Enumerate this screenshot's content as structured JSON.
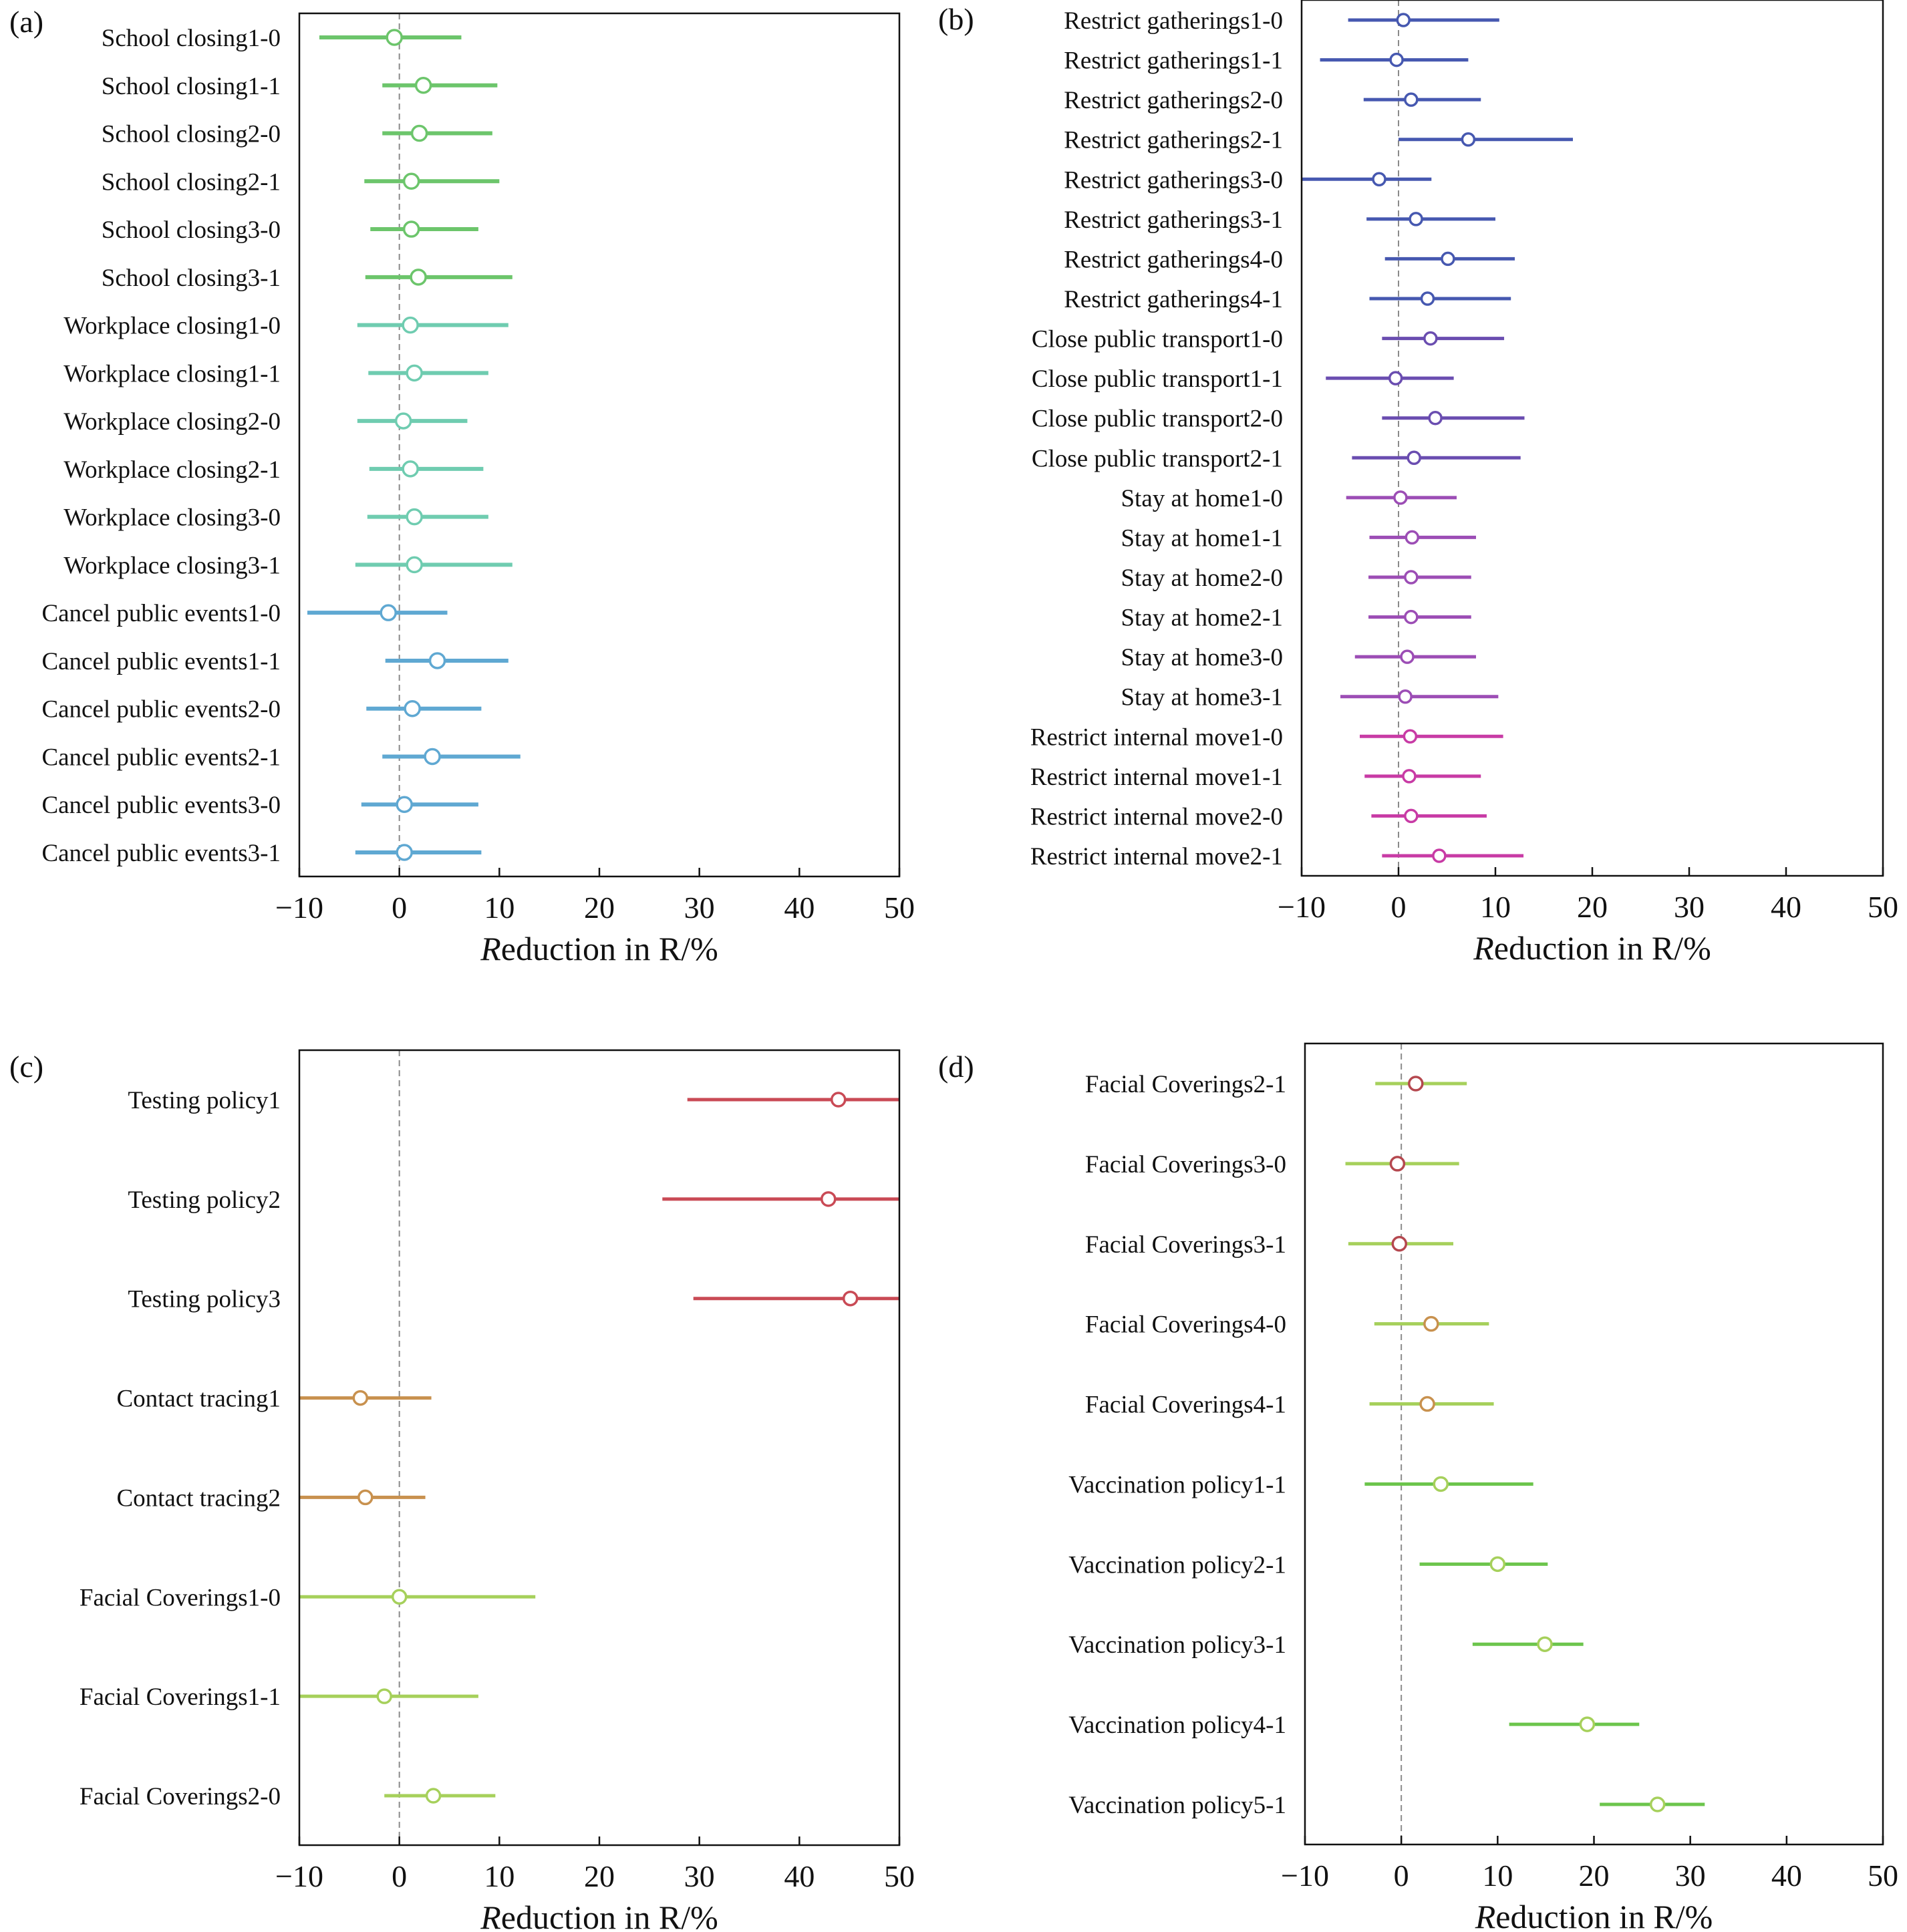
{
  "chart_data": [
    {
      "panel": "(a)",
      "type": "forest",
      "xlabel": "Reduction in R/%",
      "xlim": [
        -10,
        50
      ],
      "xticks": [
        "−10",
        "0",
        "10",
        "20",
        "30",
        "40",
        "50"
      ],
      "rows": [
        {
          "label": "School closing1-0",
          "estimate": -0.5,
          "low": -8,
          "high": 6.2,
          "color": "#6cc56b"
        },
        {
          "label": "School closing1-1",
          "estimate": 2.4,
          "low": -1.7,
          "high": 9.8,
          "color": "#6cc56b"
        },
        {
          "label": "School closing2-0",
          "estimate": 2,
          "low": -1.7,
          "high": 9.3,
          "color": "#6cc56b"
        },
        {
          "label": "School closing2-1",
          "estimate": 1.2,
          "low": -3.5,
          "high": 10,
          "color": "#6cc56b"
        },
        {
          "label": "School closing3-0",
          "estimate": 1.2,
          "low": -2.9,
          "high": 7.9,
          "color": "#6cc56b"
        },
        {
          "label": "School closing3-1",
          "estimate": 1.9,
          "low": -3.4,
          "high": 11.3,
          "color": "#6cc56b"
        },
        {
          "label": "Workplace closing1-0",
          "estimate": 1.1,
          "low": -4.2,
          "high": 10.9,
          "color": "#6fccb0"
        },
        {
          "label": "Workplace closing1-1",
          "estimate": 1.5,
          "low": -3.1,
          "high": 8.9,
          "color": "#6fccb0"
        },
        {
          "label": "Workplace closing2-0",
          "estimate": 0.4,
          "low": -4.2,
          "high": 6.8,
          "color": "#6fccb0"
        },
        {
          "label": "Workplace closing2-1",
          "estimate": 1.1,
          "low": -3,
          "high": 8.4,
          "color": "#6fccb0"
        },
        {
          "label": "Workplace closing3-0",
          "estimate": 1.5,
          "low": -3.2,
          "high": 8.9,
          "color": "#6fccb0"
        },
        {
          "label": "Workplace closing3-1",
          "estimate": 1.5,
          "low": -4.4,
          "high": 11.3,
          "color": "#6fccb0"
        },
        {
          "label": "Cancel public events1-0",
          "estimate": -1.1,
          "low": -9.2,
          "high": 4.8,
          "color": "#5fa8d2"
        },
        {
          "label": "Cancel public events1-1",
          "estimate": 3.8,
          "low": -1.4,
          "high": 10.9,
          "color": "#5fa8d2"
        },
        {
          "label": "Cancel public events2-0",
          "estimate": 1.3,
          "low": -3.3,
          "high": 8.2,
          "color": "#5fa8d2"
        },
        {
          "label": "Cancel public events2-1",
          "estimate": 3.3,
          "low": -1.7,
          "high": 12.1,
          "color": "#5fa8d2"
        },
        {
          "label": "Cancel public events3-0",
          "estimate": 0.5,
          "low": -3.8,
          "high": 7.9,
          "color": "#5fa8d2"
        },
        {
          "label": "Cancel public events3-1",
          "estimate": 0.5,
          "low": -4.4,
          "high": 8.2,
          "color": "#5fa8d2"
        }
      ]
    },
    {
      "panel": "(b)",
      "type": "forest",
      "xlabel": "Reduction in R/%",
      "xlim": [
        -10,
        50
      ],
      "xticks": [
        "−10",
        "0",
        "10",
        "20",
        "30",
        "40",
        "50"
      ],
      "rows": [
        {
          "label": "Restrict gatherings1-0",
          "estimate": 0.5,
          "low": -5.2,
          "high": 10.4,
          "color": "#4658b0"
        },
        {
          "label": "Restrict gatherings1-1",
          "estimate": -0.2,
          "low": -8.1,
          "high": 7.2,
          "color": "#4658b0"
        },
        {
          "label": "Restrict gatherings2-0",
          "estimate": 1.3,
          "low": -3.6,
          "high": 8.5,
          "color": "#4658b0"
        },
        {
          "label": "Restrict gatherings2-1",
          "estimate": 7.2,
          "low": 0,
          "high": 18,
          "color": "#4658b0"
        },
        {
          "label": "Restrict gatherings3-0",
          "estimate": -2,
          "low": -10,
          "high": 3.4,
          "color": "#4658b0"
        },
        {
          "label": "Restrict gatherings3-1",
          "estimate": 1.8,
          "low": -3.3,
          "high": 10,
          "color": "#4658b0"
        },
        {
          "label": "Restrict gatherings4-0",
          "estimate": 5.1,
          "low": -1.4,
          "high": 12,
          "color": "#4658b0"
        },
        {
          "label": "Restrict gatherings4-1",
          "estimate": 3,
          "low": -3,
          "high": 11.6,
          "color": "#4658b0"
        },
        {
          "label": "Close public transport1-0",
          "estimate": 3.3,
          "low": -1.7,
          "high": 10.9,
          "color": "#6a4db0"
        },
        {
          "label": "Close public transport1-1",
          "estimate": -0.3,
          "low": -7.5,
          "high": 5.7,
          "color": "#6a4db0"
        },
        {
          "label": "Close public transport2-0",
          "estimate": 3.8,
          "low": -1.7,
          "high": 13,
          "color": "#6a4db0"
        },
        {
          "label": "Close public transport2-1",
          "estimate": 1.6,
          "low": -4.8,
          "high": 12.6,
          "color": "#6a4db0"
        },
        {
          "label": "Stay at home1-0",
          "estimate": 0.2,
          "low": -5.4,
          "high": 6,
          "color": "#9c4db5"
        },
        {
          "label": "Stay at home1-1",
          "estimate": 1.4,
          "low": -3,
          "high": 8,
          "color": "#9c4db5"
        },
        {
          "label": "Stay at home2-0",
          "estimate": 1.3,
          "low": -3.1,
          "high": 7.5,
          "color": "#9c4db5"
        },
        {
          "label": "Stay at home2-1",
          "estimate": 1.3,
          "low": -3.1,
          "high": 7.5,
          "color": "#9c4db5"
        },
        {
          "label": "Stay at home3-0",
          "estimate": 0.9,
          "low": -4.5,
          "high": 8,
          "color": "#9c4db5"
        },
        {
          "label": "Stay at home3-1",
          "estimate": 0.7,
          "low": -6,
          "high": 10.3,
          "color": "#9c4db5"
        },
        {
          "label": "Restrict internal move1-0",
          "estimate": 1.2,
          "low": -4,
          "high": 10.8,
          "color": "#c83ba5"
        },
        {
          "label": "Restrict internal move1-1",
          "estimate": 1.1,
          "low": -3.5,
          "high": 8.5,
          "color": "#c83ba5"
        },
        {
          "label": "Restrict internal move2-0",
          "estimate": 1.3,
          "low": -2.8,
          "high": 9.1,
          "color": "#c83ba5"
        },
        {
          "label": "Restrict internal move2-1",
          "estimate": 4.2,
          "low": -1.7,
          "high": 12.9,
          "color": "#c83ba5"
        }
      ]
    },
    {
      "panel": "(c)",
      "type": "forest",
      "xlabel": "Reduction in R/%",
      "xlim": [
        -10,
        50
      ],
      "xticks": [
        "−10",
        "0",
        "10",
        "20",
        "30",
        "40",
        "50"
      ],
      "rows": [
        {
          "label": "Testing policy1",
          "estimate": 43.9,
          "low": 28.8,
          "high": 50,
          "color": "#c94a55"
        },
        {
          "label": "Testing policy2",
          "estimate": 42.9,
          "low": 26.3,
          "high": 50,
          "color": "#c94a55"
        },
        {
          "label": "Testing policy3",
          "estimate": 45.1,
          "low": 29.4,
          "high": 50,
          "color": "#c94a55"
        },
        {
          "label": "Contact tracing1",
          "estimate": -3.9,
          "low": -10,
          "high": 3.2,
          "color": "#c8914e"
        },
        {
          "label": "Contact tracing2",
          "estimate": -3.4,
          "low": -10,
          "high": 2.6,
          "color": "#c8914e"
        },
        {
          "label": "Facial Coverings1-0",
          "estimate": 0,
          "low": -10,
          "high": 13.6,
          "color": "#a6d05b"
        },
        {
          "label": "Facial Coverings1-1",
          "estimate": -1.5,
          "low": -10,
          "high": 7.9,
          "color": "#a6d05b"
        },
        {
          "label": "Facial Coverings2-0",
          "estimate": 3.4,
          "low": -1.5,
          "high": 9.6,
          "color": "#a6d05b"
        }
      ]
    },
    {
      "panel": "(d)",
      "type": "forest",
      "xlabel": "Reduction in R/%",
      "xlim": [
        -10,
        50
      ],
      "xticks": [
        "−10",
        "0",
        "10",
        "20",
        "30",
        "40",
        "50"
      ],
      "rows": [
        {
          "label": "Facial Coverings2-1",
          "estimate": 1.5,
          "low": -2.7,
          "high": 6.8,
          "color": "#a6d05b",
          "marker_edge": "#b5484f"
        },
        {
          "label": "Facial Coverings3-0",
          "estimate": -0.4,
          "low": -5.8,
          "high": 6,
          "color": "#a6d05b",
          "marker_edge": "#b5484f"
        },
        {
          "label": "Facial Coverings3-1",
          "estimate": -0.2,
          "low": -5.5,
          "high": 5.4,
          "color": "#a6d05b",
          "marker_edge": "#b5484f"
        },
        {
          "label": "Facial Coverings4-0",
          "estimate": 3.1,
          "low": -2.8,
          "high": 9.1,
          "color": "#a6d05b",
          "marker_edge": "#c8914e"
        },
        {
          "label": "Facial Coverings4-1",
          "estimate": 2.7,
          "low": -3.3,
          "high": 9.6,
          "color": "#a6d05b",
          "marker_edge": "#c8914e"
        },
        {
          "label": "Vaccination policy1-1",
          "estimate": 4.1,
          "low": -3.8,
          "high": 13.7,
          "color": "#6cc54c",
          "marker_edge": "#a6d05b"
        },
        {
          "label": "Vaccination policy2-1",
          "estimate": 10,
          "low": 1.9,
          "high": 15.2,
          "color": "#6cc54c",
          "marker_edge": "#a6d05b"
        },
        {
          "label": "Vaccination policy3-1",
          "estimate": 14.9,
          "low": 7.4,
          "high": 18.9,
          "color": "#6cc54c",
          "marker_edge": "#a6d05b"
        },
        {
          "label": "Vaccination policy4-1",
          "estimate": 19.3,
          "low": 11.2,
          "high": 24.7,
          "color": "#6cc54c",
          "marker_edge": "#a6d05b"
        },
        {
          "label": "Vaccination policy5-1",
          "estimate": 26.6,
          "low": 20.6,
          "high": 31.5,
          "color": "#6cc54c",
          "marker_edge": "#a6d05b"
        }
      ]
    }
  ]
}
